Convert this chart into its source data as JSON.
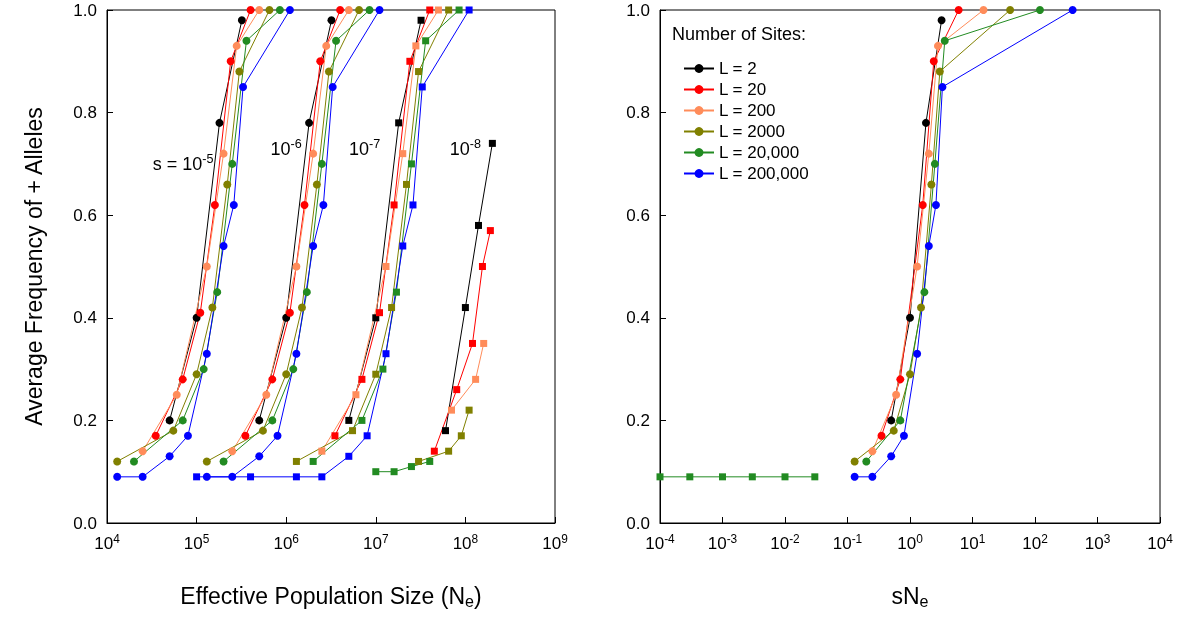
{
  "chart_data": [
    {
      "type": "line",
      "ylabel": "Average Frequency of + Alleles",
      "xlabel": "Effective Population Size (N$_{e}$)",
      "log": "x",
      "xlim": [
        10000,
        1000000000
      ],
      "xticks": [
        {
          "value": 10000,
          "label": "10$^{4}$"
        },
        {
          "value": 100000,
          "label": "10$^{5}$"
        },
        {
          "value": 1000000,
          "label": "10$^{6}$"
        },
        {
          "value": 10000000,
          "label": "10$^{7}$"
        },
        {
          "value": 100000000,
          "label": "10$^{8}$"
        },
        {
          "value": 1000000000,
          "label": "10$^{9}$"
        }
      ],
      "ylim": [
        0,
        1
      ],
      "yticks": [
        {
          "value": 0,
          "label": "0.0"
        },
        {
          "value": 0.2,
          "label": "0.2"
        },
        {
          "value": 0.4,
          "label": "0.4"
        },
        {
          "value": 0.6,
          "label": "0.6"
        },
        {
          "value": 0.8,
          "label": "0.8"
        },
        {
          "value": 1,
          "label": "1.0"
        }
      ],
      "annotations": [
        "s = 10$^{-5}$",
        "10$^{-6}$",
        "10$^{-7}$",
        "10$^{-8}$"
      ],
      "series": [
        {
          "color": "#000000",
          "marker": "circle",
          "x": [
            50000,
            100000,
            180000,
            320000
          ],
          "values": [
            0.2,
            0.4,
            0.78,
            0.98
          ]
        },
        {
          "color": "#ff0000",
          "marker": "circle",
          "x": [
            35000,
            70000,
            110000,
            160000,
            240000,
            400000
          ],
          "values": [
            0.17,
            0.28,
            0.41,
            0.62,
            0.9,
            1
          ]
        },
        {
          "color": "#ff8c5a",
          "marker": "circle",
          "x": [
            25000,
            60000,
            130000,
            200000,
            280000,
            500000
          ],
          "values": [
            0.14,
            0.25,
            0.5,
            0.72,
            0.93,
            1
          ]
        },
        {
          "color": "#808000",
          "marker": "circle",
          "x": [
            13000,
            55000,
            100000,
            150000,
            220000,
            300000,
            650000
          ],
          "values": [
            0.12,
            0.18,
            0.29,
            0.42,
            0.66,
            0.88,
            1
          ]
        },
        {
          "color": "#228b22",
          "marker": "circle",
          "x": [
            20000,
            70000,
            120000,
            170000,
            250000,
            360000,
            850000
          ],
          "values": [
            0.12,
            0.2,
            0.3,
            0.45,
            0.7,
            0.94,
            1
          ]
        },
        {
          "color": "#0000ff",
          "marker": "circle",
          "x": [
            13000,
            25000,
            50000,
            80000,
            130000,
            200000,
            260000,
            330000,
            1100000
          ],
          "values": [
            0.09,
            0.09,
            0.13,
            0.17,
            0.33,
            0.54,
            0.62,
            0.85,
            1
          ]
        },
        {
          "color": "#000000",
          "marker": "circle",
          "x": [
            500000,
            1000000,
            1800000,
            3200000
          ],
          "values": [
            0.2,
            0.4,
            0.78,
            0.98
          ]
        },
        {
          "color": "#ff0000",
          "marker": "circle",
          "x": [
            350000,
            700000,
            1100000,
            1600000,
            2400000,
            4000000
          ],
          "values": [
            0.17,
            0.28,
            0.41,
            0.62,
            0.9,
            1
          ]
        },
        {
          "color": "#ff8c5a",
          "marker": "circle",
          "x": [
            250000,
            600000,
            1300000,
            2000000,
            2800000,
            5000000
          ],
          "values": [
            0.14,
            0.25,
            0.5,
            0.72,
            0.93,
            1
          ]
        },
        {
          "color": "#808000",
          "marker": "circle",
          "x": [
            130000,
            550000,
            1000000,
            1500000,
            2200000,
            3000000,
            6500000
          ],
          "values": [
            0.12,
            0.18,
            0.29,
            0.42,
            0.66,
            0.88,
            1
          ]
        },
        {
          "color": "#228b22",
          "marker": "circle",
          "x": [
            200000,
            700000,
            1200000,
            1700000,
            2500000,
            3600000,
            8500000
          ],
          "values": [
            0.12,
            0.2,
            0.3,
            0.45,
            0.7,
            0.94,
            1
          ]
        },
        {
          "color": "#0000ff",
          "marker": "circle",
          "x": [
            130000,
            250000,
            500000,
            800000,
            1300000,
            2000000,
            2600000,
            3300000,
            11000000
          ],
          "values": [
            0.09,
            0.09,
            0.13,
            0.17,
            0.33,
            0.54,
            0.62,
            0.85,
            1
          ]
        },
        {
          "color": "#000000",
          "marker": "square",
          "x": [
            5000000,
            10000000,
            18000000,
            32000000
          ],
          "values": [
            0.2,
            0.4,
            0.78,
            0.98
          ]
        },
        {
          "color": "#ff0000",
          "marker": "square",
          "x": [
            3500000,
            7000000,
            11000000,
            16000000,
            24000000,
            40000000
          ],
          "values": [
            0.17,
            0.28,
            0.41,
            0.62,
            0.9,
            1
          ]
        },
        {
          "color": "#ff8c5a",
          "marker": "square",
          "x": [
            2500000,
            6000000,
            13000000,
            20000000,
            28000000,
            50000000
          ],
          "values": [
            0.14,
            0.25,
            0.5,
            0.72,
            0.93,
            1
          ]
        },
        {
          "color": "#808000",
          "marker": "square",
          "x": [
            1300000,
            5500000,
            10000000,
            15000000,
            22000000,
            30000000,
            65000000
          ],
          "values": [
            0.12,
            0.18,
            0.29,
            0.42,
            0.66,
            0.88,
            1
          ]
        },
        {
          "color": "#228b22",
          "marker": "square",
          "x": [
            2000000,
            7000000,
            12000000,
            17000000,
            25000000,
            36000000,
            85000000
          ],
          "values": [
            0.12,
            0.2,
            0.3,
            0.45,
            0.7,
            0.94,
            1
          ]
        },
        {
          "color": "#0000ff",
          "marker": "square",
          "x": [
            100000,
            400000,
            1300000,
            2500000,
            5000000,
            8000000,
            13000000,
            20000000,
            26000000,
            33000000,
            110000000
          ],
          "values": [
            0.09,
            0.09,
            0.09,
            0.09,
            0.13,
            0.17,
            0.33,
            0.54,
            0.62,
            0.85,
            1
          ]
        },
        {
          "color": "#000000",
          "marker": "square",
          "x": [
            60000000,
            100000000,
            140000000,
            200000000
          ],
          "values": [
            0.18,
            0.42,
            0.58,
            0.74
          ]
        },
        {
          "color": "#ff0000",
          "marker": "square",
          "x": [
            45000000,
            80000000,
            120000000,
            155000000,
            190000000
          ],
          "values": [
            0.14,
            0.26,
            0.35,
            0.5,
            0.57
          ]
        },
        {
          "color": "#ff8c5a",
          "marker": "square",
          "x": [
            70000000,
            130000000,
            160000000
          ],
          "values": [
            0.22,
            0.28,
            0.35
          ]
        },
        {
          "color": "#808000",
          "marker": "square",
          "x": [
            30000000,
            65000000,
            90000000,
            110000000
          ],
          "values": [
            0.12,
            0.14,
            0.17,
            0.22
          ]
        },
        {
          "color": "#228b22",
          "marker": "square",
          "x": [
            10000000,
            16000000,
            25000000,
            40000000
          ],
          "values": [
            0.1,
            0.1,
            0.11,
            0.12
          ]
        }
      ]
    },
    {
      "type": "line",
      "xlabel": "sN$_{e}$",
      "log": "x",
      "xlim": [
        0.0001,
        10000
      ],
      "xticks": [
        {
          "value": 0.0001,
          "label": "10$^{-4}$"
        },
        {
          "value": 0.001,
          "label": "10$^{-3}$"
        },
        {
          "value": 0.01,
          "label": "10$^{-2}$"
        },
        {
          "value": 0.1,
          "label": "10$^{-1}$"
        },
        {
          "value": 1,
          "label": "10$^{0}$"
        },
        {
          "value": 10,
          "label": "10$^{1}$"
        },
        {
          "value": 100,
          "label": "10$^{2}$"
        },
        {
          "value": 1000,
          "label": "10$^{3}$"
        },
        {
          "value": 10000,
          "label": "10$^{4}$"
        }
      ],
      "ylim": [
        0,
        1
      ],
      "yticks": [
        {
          "value": 0,
          "label": "0.0"
        },
        {
          "value": 0.2,
          "label": "0.2"
        },
        {
          "value": 0.4,
          "label": "0.4"
        },
        {
          "value": 0.6,
          "label": "0.6"
        },
        {
          "value": 0.8,
          "label": "0.8"
        },
        {
          "value": 1,
          "label": "1.0"
        }
      ],
      "legend": "top left",
      "legend_title": "Number of Sites:",
      "series": [
        {
          "name": "L = 2",
          "color": "#000000",
          "marker": "circle",
          "x": [
            0.5,
            1,
            1.8,
            3.2
          ],
          "values": [
            0.2,
            0.4,
            0.78,
            0.98
          ]
        },
        {
          "name": "L = 20",
          "color": "#ff0000",
          "marker": "circle",
          "x": [
            0.35,
            0.7,
            1.6,
            2.4,
            6
          ],
          "values": [
            0.17,
            0.28,
            0.62,
            0.9,
            1
          ]
        },
        {
          "name": "L = 200",
          "color": "#ff8c5a",
          "marker": "circle",
          "x": [
            0.25,
            0.6,
            1.3,
            2,
            2.8,
            15
          ],
          "values": [
            0.14,
            0.25,
            0.5,
            0.72,
            0.93,
            1
          ]
        },
        {
          "name": "L = 2000",
          "color": "#808000",
          "marker": "circle",
          "x": [
            0.13,
            0.55,
            1,
            1.5,
            2.2,
            3,
            40
          ],
          "values": [
            0.12,
            0.18,
            0.29,
            0.42,
            0.66,
            0.88,
            1
          ]
        },
        {
          "name": "L = 20,000",
          "color": "#228b22",
          "marker": "circle",
          "x": [
            0.2,
            0.7,
            1.7,
            2.5,
            3.6,
            120
          ],
          "values": [
            0.12,
            0.2,
            0.45,
            0.7,
            0.94,
            1
          ]
        },
        {
          "name": "L = 200,000",
          "color": "#0000ff",
          "marker": "circle",
          "x": [
            0.13,
            0.25,
            0.5,
            0.8,
            1.3,
            2,
            2.6,
            3.3,
            400
          ],
          "values": [
            0.09,
            0.09,
            0.13,
            0.17,
            0.33,
            0.54,
            0.62,
            0.85,
            1
          ]
        },
        {
          "color": "#228b22",
          "marker": "square",
          "x": [
            0.0001,
            0.0003,
            0.001,
            0.003,
            0.01,
            0.03
          ],
          "values": [
            0.09,
            0.09,
            0.09,
            0.09,
            0.09,
            0.09
          ]
        }
      ]
    }
  ]
}
